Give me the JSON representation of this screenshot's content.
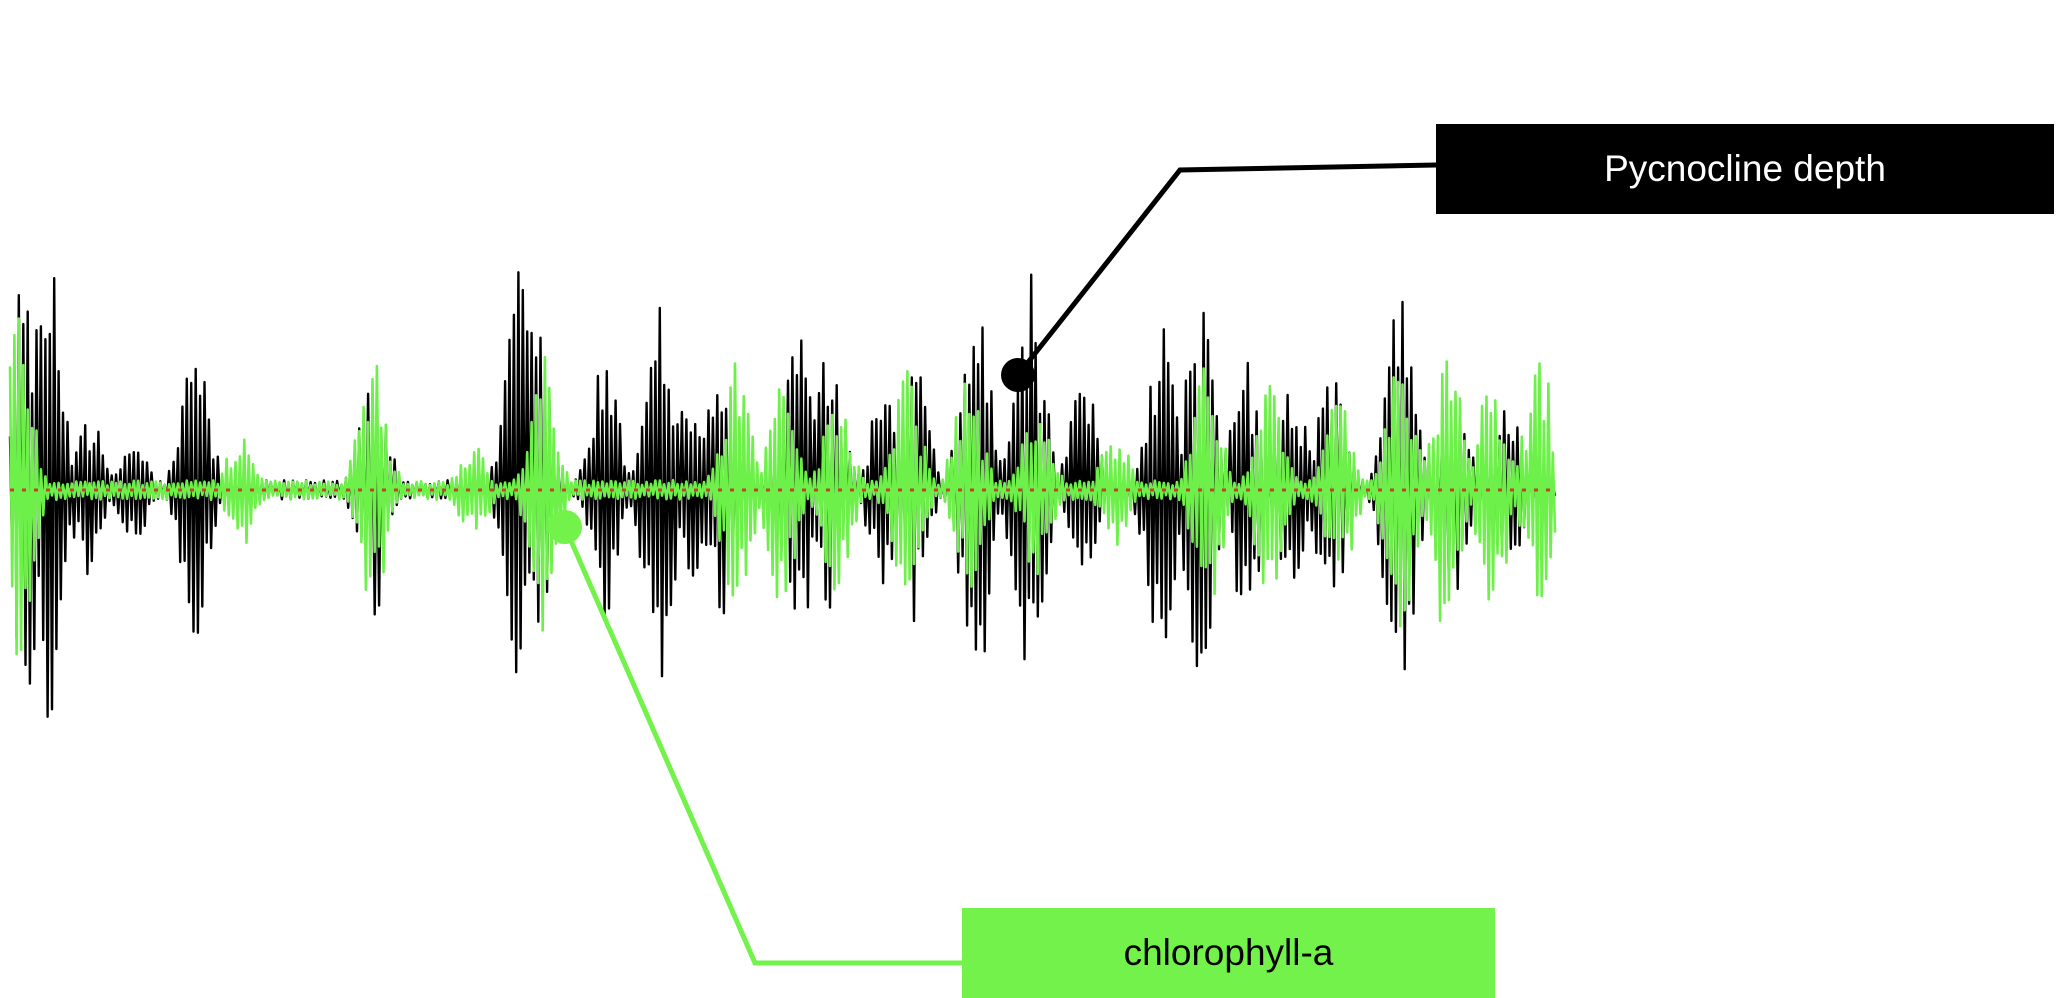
{
  "chart_data": {
    "type": "line",
    "title": "",
    "xlabel": "",
    "ylabel": "",
    "ylim": [
      -1,
      1
    ],
    "x_count": 700,
    "series": [
      {
        "name": "Pycnocline depth",
        "color": "#000000",
        "burst_positions": [
          0.01,
          0.025,
          0.05,
          0.08,
          0.12,
          0.235,
          0.33,
          0.34,
          0.385,
          0.42,
          0.44,
          0.46,
          0.51,
          0.53,
          0.565,
          0.585,
          0.625,
          0.66,
          0.695,
          0.745,
          0.77,
          0.8,
          0.83,
          0.855,
          0.9,
          0.935,
          0.97
        ],
        "burst_amplitudes": [
          0.95,
          0.95,
          0.35,
          0.22,
          0.62,
          0.55,
          0.92,
          0.72,
          0.55,
          0.85,
          0.42,
          0.52,
          0.72,
          0.58,
          0.42,
          0.55,
          0.86,
          0.9,
          0.45,
          0.72,
          0.82,
          0.55,
          0.45,
          0.52,
          0.97,
          0.45,
          0.35
        ]
      },
      {
        "name": "chlorophyll-a",
        "color": "#6ef04a",
        "burst_positions": [
          0.005,
          0.15,
          0.235,
          0.3,
          0.345,
          0.47,
          0.5,
          0.535,
          0.58,
          0.62,
          0.665,
          0.715,
          0.775,
          0.815,
          0.86,
          0.9,
          0.93,
          0.96,
          0.99
        ],
        "burst_amplitudes": [
          0.8,
          0.25,
          0.55,
          0.2,
          0.58,
          0.55,
          0.48,
          0.42,
          0.52,
          0.45,
          0.38,
          0.25,
          0.52,
          0.45,
          0.4,
          0.58,
          0.62,
          0.5,
          0.55
        ]
      }
    ],
    "baseline": {
      "value": 0,
      "style": "dotted",
      "color": "#c0442a"
    },
    "annotations": [
      {
        "text": "Pycnocline depth",
        "series": "Pycnocline depth",
        "box_color": "#000000",
        "text_color": "#ffffff"
      },
      {
        "text": "chlorophyll-a",
        "series": "chlorophyll-a",
        "box_color": "#72f24a",
        "text_color": "#000000"
      }
    ]
  }
}
